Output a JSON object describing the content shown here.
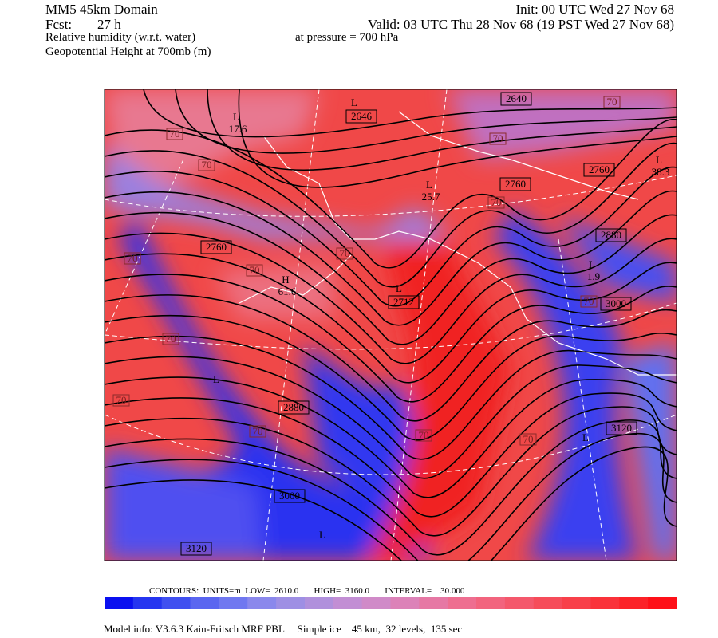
{
  "header": {
    "title": "MM5 45km Domain",
    "init": "Init: 00 UTC Wed 27 Nov 68",
    "fcst_label": "Fcst:",
    "fcst_value": "27 h",
    "valid": "Valid: 03 UTC Thu 28 Nov 68 (19 PST Wed 27 Nov 68)",
    "field1": "Relative humidity (w.r.t. water)",
    "pressure": "at pressure =  700 hPa",
    "field2": "Geopotential Height at 700mb (m)"
  },
  "height_labels": [
    "2640",
    "2646",
    "2760",
    "2760",
    "2880",
    "2760",
    "2712",
    "3000",
    "2880",
    "3120",
    "3000",
    "3120"
  ],
  "centers": [
    {
      "kind": "L",
      "value": "17.6"
    },
    {
      "kind": "L",
      "value": "25.7"
    },
    {
      "kind": "L",
      "value": "38.3"
    },
    {
      "kind": "H",
      "value": "61.6"
    },
    {
      "kind": "L",
      "value": "1.9"
    },
    {
      "kind": "L",
      "value": "2646"
    },
    {
      "kind": "L",
      "value": "2712"
    },
    {
      "kind": "L"
    },
    {
      "kind": "L"
    },
    {
      "kind": "L"
    }
  ],
  "rh_labels": [
    "70",
    "70",
    "70",
    "70",
    "70",
    "70",
    "70",
    "70",
    "70",
    "70",
    "70",
    "70",
    "70",
    "70"
  ],
  "footer": {
    "contours": "CONTOURS:  UNITS=m  LOW=  2610.0       HIGH=  3160.0       INTERVAL=    30.000",
    "model_info": "Model info: V3.6.3 Kain-Fritsch MRF PBL     Simple ice    45 km,  32 levels,  135 sec"
  },
  "colorbar": [
    "#0a10f0",
    "#2535f0",
    "#4050f0",
    "#5a66f0",
    "#7078f0",
    "#8a88ec",
    "#9e8fe4",
    "#b090dc",
    "#c28ed4",
    "#d08ac8",
    "#dc82b8",
    "#e678a4",
    "#ee6e90",
    "#f2647e",
    "#f4586c",
    "#f64c5a",
    "#f8404a",
    "#fa323a",
    "#fc2228",
    "#fe1018"
  ]
}
